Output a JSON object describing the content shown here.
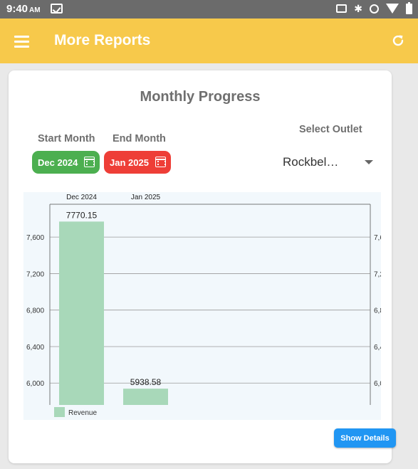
{
  "status_bar": {
    "time": "9:40",
    "ampm": "AM"
  },
  "app_bar": {
    "title": "More Reports"
  },
  "card": {
    "title": "Monthly Progress",
    "start_month_label": "Start Month",
    "end_month_label": "End Month",
    "start_month_value": "Dec 2024",
    "end_month_value": "Jan 2025",
    "outlet_label": "Select Outlet",
    "outlet_value": "Rockbel…",
    "show_details_label": "Show Details"
  },
  "colors": {
    "app_bar": "#f7c94b",
    "start_button": "#4caf50",
    "end_button": "#ee3e37",
    "bar": "#a8d8b9",
    "show_details": "#2196f3"
  },
  "chart_data": {
    "type": "bar",
    "categories": [
      "Dec 2024",
      "Jan 2025"
    ],
    "series": [
      {
        "name": "Revenue",
        "values": [
          7770.15,
          5938.58
        ]
      }
    ],
    "data_labels": [
      "7770.15",
      "5938.58"
    ],
    "y_ticks": [
      6000,
      6400,
      6800,
      7200,
      7600
    ],
    "y_tick_labels": [
      "6,000",
      "6,400",
      "6,800",
      "7,200",
      "7,600"
    ],
    "ylim": [
      5760,
      7960
    ],
    "axes": "left-and-right",
    "x_labels_position": "top",
    "grid": true,
    "legend": "bottom-left"
  }
}
